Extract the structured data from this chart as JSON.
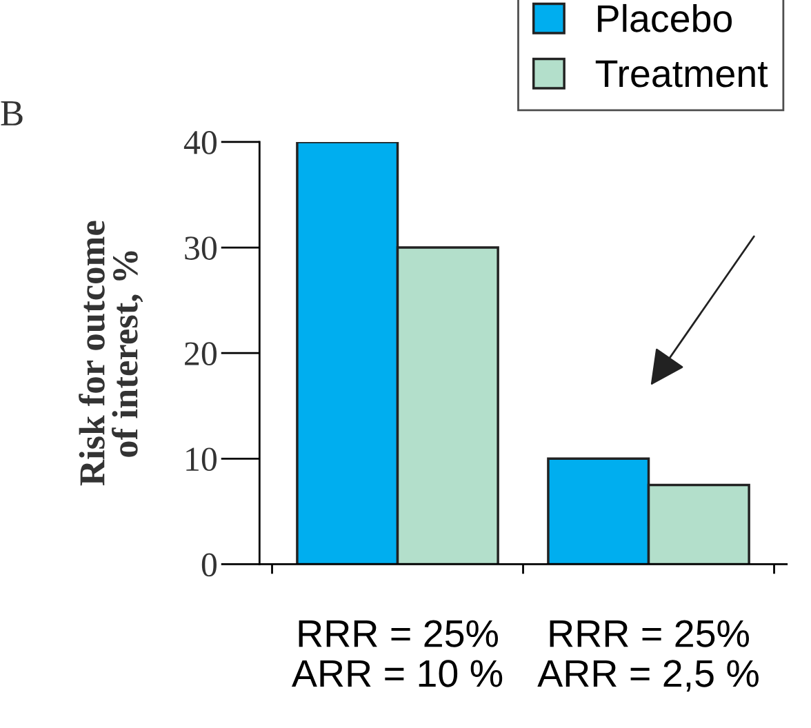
{
  "chart_data": {
    "type": "bar",
    "ylabel": "Risk for outcome\nof interest, %",
    "categories": [
      "RRR = 25%\nARR = 10 %",
      "RRR = 25%\nARR = 2,5 %"
    ],
    "series": [
      {
        "name": "Placebo",
        "color": "#00aeef",
        "values": [
          40,
          10
        ]
      },
      {
        "name": "Treatment",
        "color": "#b3dfcb",
        "values": [
          30,
          7.5
        ]
      }
    ],
    "ylim": [
      0,
      40
    ],
    "yticks": [
      0,
      10,
      20,
      30,
      40
    ],
    "grid": false,
    "legend": "top right",
    "annotations": [
      "B"
    ]
  }
}
